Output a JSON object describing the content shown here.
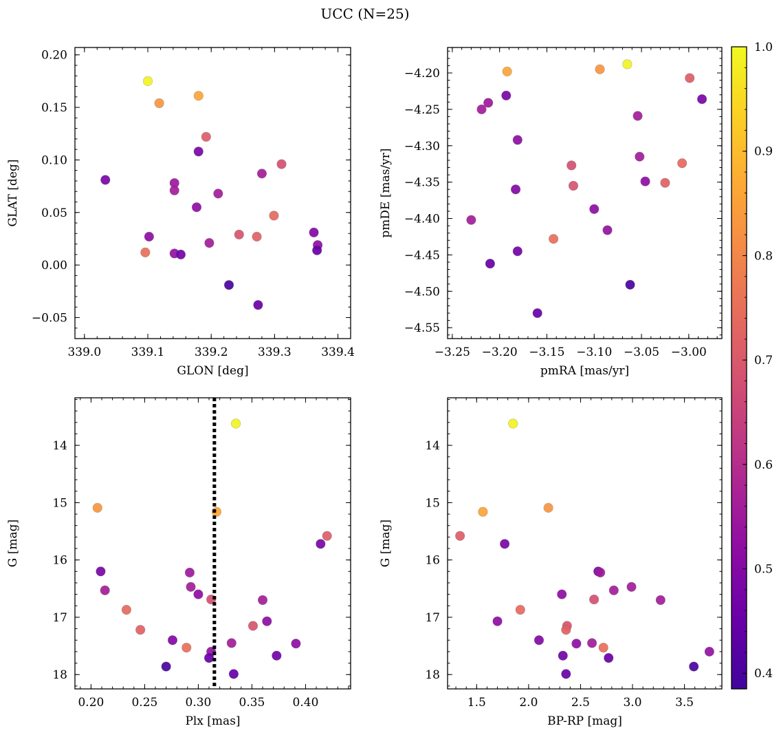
{
  "chart_data": {
    "type": "scatter",
    "title": "UCC (N=25)",
    "colorbar": {
      "range": [
        0.385,
        1.0
      ],
      "ticks": [
        0.4,
        0.5,
        0.6,
        0.7,
        0.8,
        0.9,
        1.0
      ],
      "tick_labels": [
        "0.4",
        "0.5",
        "0.6",
        "0.7",
        "0.8",
        "0.9",
        "1.0"
      ],
      "colormap": "plasma"
    },
    "members": {
      "glon": [
        339.1,
        339.118,
        339.18,
        339.192,
        339.18,
        339.033,
        339.142,
        339.142,
        339.211,
        339.177,
        339.28,
        339.311,
        339.299,
        339.102,
        339.244,
        339.272,
        339.362,
        339.368,
        339.197,
        339.096,
        339.142,
        339.152,
        339.367,
        339.228,
        339.274
      ],
      "glat": [
        0.175,
        0.154,
        0.161,
        0.122,
        0.108,
        0.081,
        0.078,
        0.071,
        0.068,
        0.055,
        0.087,
        0.096,
        0.047,
        0.027,
        0.029,
        0.027,
        0.031,
        0.019,
        0.021,
        0.012,
        0.011,
        0.01,
        0.014,
        -0.019,
        -0.038
      ],
      "pmra": [
        -3.065,
        -3.094,
        -3.192,
        -2.999,
        -2.986,
        -3.193,
        -3.212,
        -3.219,
        -3.054,
        -3.181,
        -3.052,
        -3.124,
        -3.007,
        -3.046,
        -3.122,
        -3.025,
        -3.183,
        -3.1,
        -3.23,
        -3.143,
        -3.086,
        -3.181,
        -3.21,
        -3.062,
        -3.16
      ],
      "pmde": [
        -4.188,
        -4.195,
        -4.198,
        -4.207,
        -4.236,
        -4.231,
        -4.241,
        -4.25,
        -4.259,
        -4.292,
        -4.315,
        -4.327,
        -4.324,
        -4.349,
        -4.355,
        -4.351,
        -4.36,
        -4.387,
        -4.402,
        -4.428,
        -4.416,
        -4.445,
        -4.462,
        -4.491,
        -4.53
      ],
      "plx": [
        0.335,
        0.206,
        0.317,
        0.42,
        0.414,
        0.209,
        0.292,
        0.213,
        0.293,
        0.3,
        0.36,
        0.312,
        0.233,
        0.364,
        0.351,
        0.246,
        0.276,
        0.391,
        0.331,
        0.289,
        0.312,
        0.373,
        0.31,
        0.27,
        0.333
      ],
      "gmag": [
        13.62,
        15.09,
        15.16,
        15.58,
        15.72,
        16.2,
        16.22,
        16.53,
        16.47,
        16.6,
        16.7,
        16.69,
        16.87,
        17.07,
        17.15,
        17.22,
        17.4,
        17.46,
        17.45,
        17.53,
        17.6,
        17.67,
        17.71,
        17.86,
        17.99
      ],
      "bp_rp": [
        1.85,
        2.19,
        1.56,
        1.34,
        1.77,
        2.67,
        2.69,
        2.82,
        2.99,
        2.32,
        3.27,
        2.63,
        1.92,
        1.7,
        2.37,
        2.36,
        2.1,
        2.46,
        2.61,
        2.72,
        3.74,
        2.33,
        2.77,
        3.59,
        2.36
      ],
      "probability": [
        0.99,
        0.83,
        0.86,
        0.71,
        0.48,
        0.48,
        0.55,
        0.56,
        0.56,
        0.52,
        0.56,
        0.68,
        0.74,
        0.52,
        0.69,
        0.72,
        0.5,
        0.52,
        0.56,
        0.75,
        0.53,
        0.47,
        0.45,
        0.4,
        0.45
      ]
    },
    "panels": [
      {
        "id": "glon-glat",
        "x": "glon",
        "y": "glat",
        "xlabel": "GLON [deg]",
        "ylabel": "GLAT [deg]",
        "xlim": [
          338.985,
          339.42
        ],
        "ylim": [
          -0.07,
          0.207
        ],
        "invert_y": false,
        "xticks": [
          339.0,
          339.1,
          339.2,
          339.3,
          339.4
        ],
        "xtick_labels": [
          "339.0",
          "339.1",
          "339.2",
          "339.3",
          "339.4"
        ],
        "yticks": [
          -0.05,
          0.0,
          0.05,
          0.1,
          0.15,
          0.2
        ],
        "ytick_labels": [
          "−0.05",
          "0.00",
          "0.05",
          "0.10",
          "0.15",
          "0.20"
        ],
        "vline": null
      },
      {
        "id": "pmra-pmde",
        "x": "pmra",
        "y": "pmde",
        "xlabel": "pmRA [mas/yr]",
        "ylabel": "pmDE [mas/yr]",
        "xlim": [
          -3.255,
          -2.965
        ],
        "ylim": [
          -4.565,
          -4.165
        ],
        "invert_y": false,
        "xticks": [
          -3.25,
          -3.2,
          -3.15,
          -3.1,
          -3.05,
          -3.0
        ],
        "xtick_labels": [
          "−3.25",
          "−3.20",
          "−3.15",
          "−3.10",
          "−3.05",
          "−3.00"
        ],
        "yticks": [
          -4.55,
          -4.5,
          -4.45,
          -4.4,
          -4.35,
          -4.3,
          -4.25,
          -4.2
        ],
        "ytick_labels": [
          "−4.55",
          "−4.50",
          "−4.45",
          "−4.40",
          "−4.35",
          "−4.30",
          "−4.25",
          "−4.20"
        ],
        "vline": null
      },
      {
        "id": "plx-g",
        "x": "plx",
        "y": "gmag",
        "xlabel": "Plx [mas]",
        "ylabel": "G [mag]",
        "xlim": [
          0.185,
          0.442
        ],
        "ylim": [
          18.25,
          13.17
        ],
        "invert_y": true,
        "xticks": [
          0.2,
          0.25,
          0.3,
          0.35,
          0.4
        ],
        "xtick_labels": [
          "0.20",
          "0.25",
          "0.30",
          "0.35",
          "0.40"
        ],
        "yticks": [
          14,
          15,
          16,
          17,
          18
        ],
        "ytick_labels": [
          "14",
          "15",
          "16",
          "17",
          "18"
        ],
        "vline": 0.315
      },
      {
        "id": "bprp-g",
        "x": "bp_rp",
        "y": "gmag",
        "xlabel": "BP-RP [mag]",
        "ylabel": "G [mag]",
        "xlim": [
          1.22,
          3.86
        ],
        "ylim": [
          18.25,
          13.17
        ],
        "invert_y": true,
        "xticks": [
          1.5,
          2.0,
          2.5,
          3.0,
          3.5
        ],
        "xtick_labels": [
          "1.5",
          "2.0",
          "2.5",
          "3.0",
          "3.5"
        ],
        "yticks": [
          14,
          15,
          16,
          17,
          18
        ],
        "ytick_labels": [
          "14",
          "15",
          "16",
          "17",
          "18"
        ],
        "vline": null
      }
    ]
  }
}
